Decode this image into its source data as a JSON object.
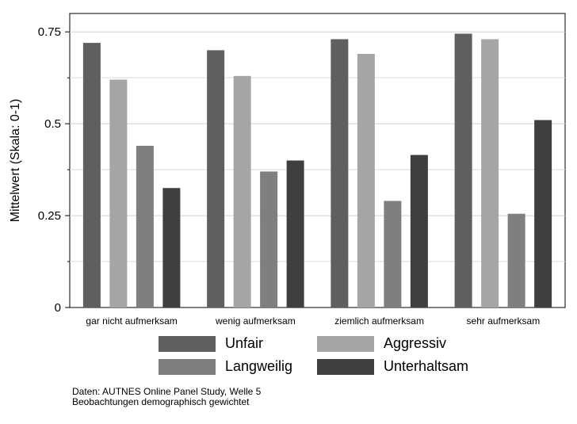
{
  "chart_data": {
    "type": "bar",
    "ylabel": "Mittelwert (Skala: 0-1)",
    "ylim": [
      0,
      0.8
    ],
    "yticks": [
      0,
      0.25,
      0.5,
      0.75
    ],
    "ytick_labels": [
      "0",
      "0.25",
      "0.5",
      "0.75"
    ],
    "grid": true,
    "legend_position": "bottom",
    "categories": [
      "gar nicht aufmerksam",
      "wenig aufmerksam",
      "ziemlich aufmerksam",
      "sehr aufmerksam"
    ],
    "series": [
      {
        "name": "Unfair",
        "color": "#5f5f5f",
        "values": [
          0.72,
          0.7,
          0.73,
          0.745
        ]
      },
      {
        "name": "Aggressiv",
        "color": "#a5a5a5",
        "values": [
          0.62,
          0.63,
          0.69,
          0.73
        ]
      },
      {
        "name": "Langweilig",
        "color": "#7f7f7f",
        "values": [
          0.44,
          0.37,
          0.29,
          0.255
        ]
      },
      {
        "name": "Unterhaltsam",
        "color": "#3f3f3f",
        "values": [
          0.325,
          0.4,
          0.415,
          0.51
        ]
      }
    ]
  },
  "note": {
    "line1": "Daten: AUTNES Online Panel Study, Welle 5",
    "line2": "Beobachtungen demographisch gewichtet"
  }
}
